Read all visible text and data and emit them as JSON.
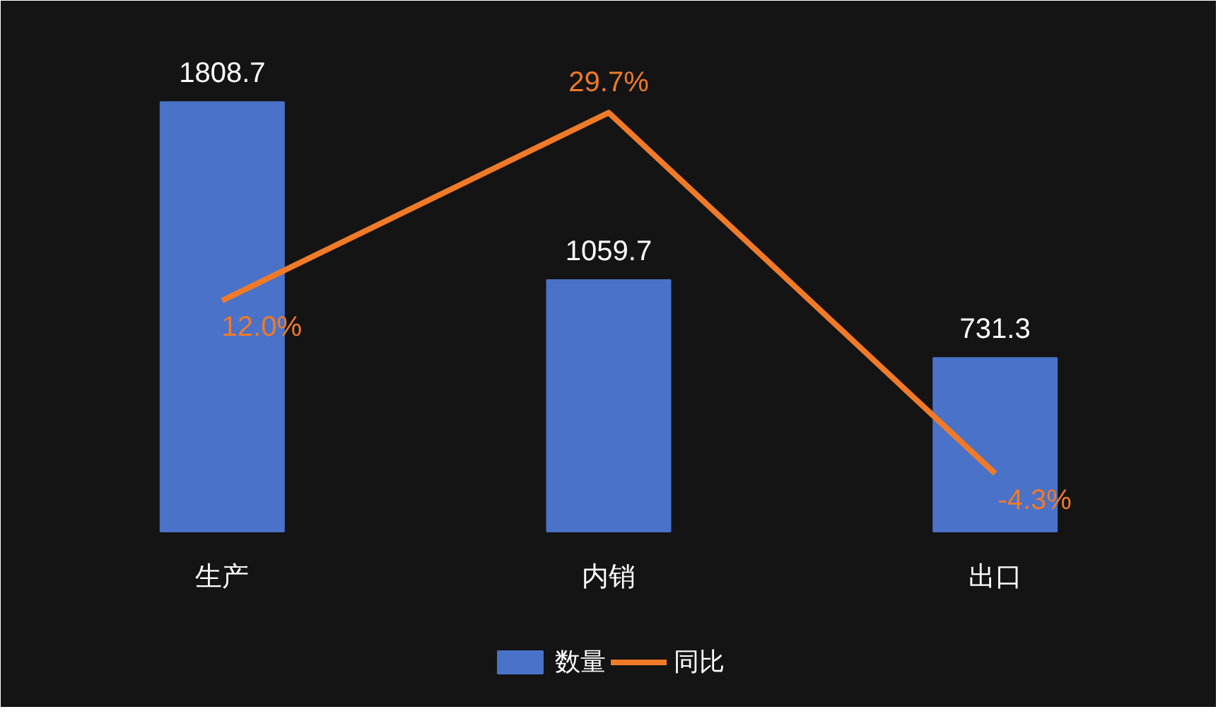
{
  "chart_data": {
    "type": "bar",
    "categories": [
      "生产",
      "内销",
      "出口"
    ],
    "series": [
      {
        "name": "数量",
        "color": "#4a72c8",
        "values": [
          1808.7,
          1059.7,
          731.3
        ],
        "value_labels": [
          "1808.7",
          "1059.7",
          "731.3"
        ]
      },
      {
        "name": "同比",
        "type": "line",
        "axis": "y2",
        "color": "#f07a28",
        "values": [
          12.0,
          29.7,
          -4.3
        ],
        "value_labels": [
          "12.0%",
          "29.7%",
          "-4.3%"
        ]
      }
    ],
    "legend": "bottom",
    "grid": false,
    "tick_labels": false
  }
}
